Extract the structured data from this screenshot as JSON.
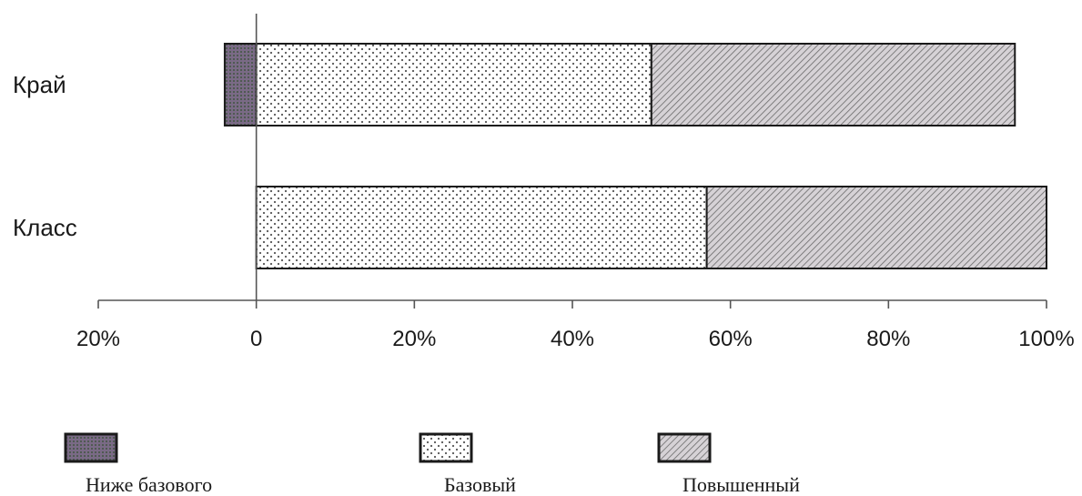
{
  "chart_data": {
    "type": "bar",
    "orientation": "horizontal",
    "stacked": true,
    "categories": [
      "Край",
      "Класс"
    ],
    "series": [
      {
        "name": "Ниже базового",
        "values": [
          -4,
          0
        ],
        "color": "#6f6478",
        "pattern": "solid-purple-gray"
      },
      {
        "name": "Базовый",
        "values": [
          50,
          57
        ],
        "color": "#ffffff",
        "pattern": "dots"
      },
      {
        "name": "Повышенный",
        "values": [
          46,
          43
        ],
        "color": "#c8c4c8",
        "pattern": "diagonal-hatch"
      }
    ],
    "xlim": [
      -20,
      100
    ],
    "xticks": [
      -20,
      0,
      20,
      40,
      60,
      80,
      100
    ],
    "xtick_labels": [
      "20%",
      "0",
      "20%",
      "40%",
      "60%",
      "80%",
      "100%"
    ],
    "title": "",
    "xlabel": "",
    "ylabel": "",
    "grid": false,
    "legend_position": "bottom"
  }
}
